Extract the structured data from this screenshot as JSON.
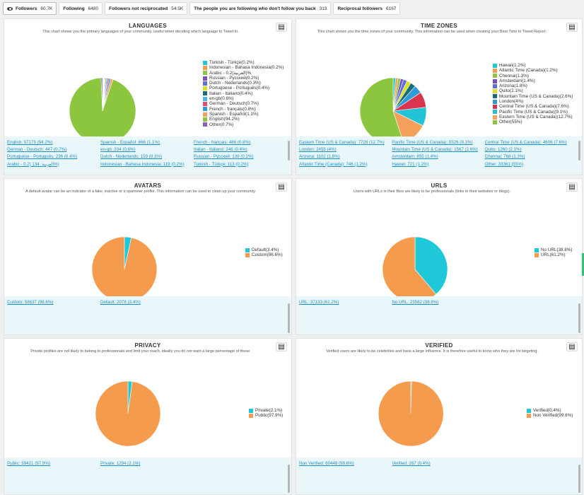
{
  "tabs": [
    {
      "label": "Followers",
      "count": "60.7K",
      "icon": "eye-icon"
    },
    {
      "label": "Following",
      "count": "6480"
    },
    {
      "label": "Followers not reciprocated",
      "count": "54.5K"
    },
    {
      "label": "The people you are following who don't follow you back",
      "count": "313"
    },
    {
      "label": "Reciprocal followers",
      "count": "6167"
    }
  ],
  "export_icon": "export-chart-icon",
  "cards": {
    "languages": {
      "title": "LANGUAGES",
      "desc": "This chart shows you the primary languages of your community, useful when deciding which language to Tweet in.",
      "legend": [
        "Turkish - Türkçe(0.2%)",
        "Indonesian - Bahasa Indonesia(0.2%)",
        "Arabic - 0.2(العربية)%",
        "Russian - Русский(0.2%)",
        "Dutch - Nederlands(0.3%)",
        "Portuguese - Português(0.4%)",
        "Italian - Italiano(0.4%)",
        "en-gb(0.6%)",
        "German - Deutsch(0.7%)",
        "French - français(0.8%)",
        "Spanish - Español(1.1%)",
        "English(94.2%)",
        "Other(0.7%)"
      ],
      "links": [
        "English: 57175 (94.2%)",
        "Spanish - Español: 666 (1.1%)",
        "French - français: 486 (0.8%)",
        "German - Deutsch: 447 (0.7%)",
        "en-gb: 334 (0.6%)",
        "Italian - Italiano: 246 (0.4%)",
        "Portuguese - Português: 236 (0.4%)",
        "Dutch - Nederlands: 159 (0.3%)",
        "Russian - Русский: 139 (0.2%)",
        "Arabic - 0.2) 134 :العربية%)",
        "Indonesian - Bahasa Indonesia: 119 (0.2%)",
        "Turkish - Türkçe: 113 (0.2%)"
      ]
    },
    "timezones": {
      "title": "TIME ZONES",
      "desc": "This chart shows you the time zones of your community. This information can be used when creating your Best Time to Tweet Report.",
      "legend": [
        "Hawaii(1.2%)",
        "Atlantic Time (Canada)(1.2%)",
        "Chennai(1.3%)",
        "Amsterdam(1.4%)",
        "Arizona(1.8%)",
        "Quito(2.1%)",
        "Mountain Time (US & Canada)(2.6%)",
        "London(4%)",
        "Central Time (US & Canada)(7.6%)",
        "Pacific Time (US & Canada)(9.1%)",
        "Eastern Time (US & Canada)(12.7%)",
        "Other(55%)"
      ],
      "links": [
        "Eastern Time (US & Canada): 7728 (12.7%)",
        "Pacific Time (US & Canada): 5526 (9.1%)",
        "Central Time (US & Canada): 4606 (7.6%)",
        "London: 2455 (4%)",
        "Mountain Time (US & Canada): 1567 (2.6%)",
        "Quito: 1260 (2.1%)",
        "Arizona: 1102 (1.8%)",
        "Amsterdam: 855 (1.4%)",
        "Chennai: 768 (1.3%)",
        "Atlantic Time (Canada): 746 (1.2%)",
        "Hawaii: 721 (1.2%)",
        "Other: 33361 (55%)"
      ]
    },
    "avatars": {
      "title": "AVATARS",
      "desc": "A default avatar can be an indicator of a fake, inactive or a spammer profile. This information can be used to clean up your community.",
      "legend": [
        "Default(3.4%)",
        "Custom(96.6%)"
      ],
      "links": [
        "Custom: 58637 (96.6%)",
        "Default: 2078 (3.4%)"
      ]
    },
    "urls": {
      "title": "URLS",
      "desc": "Users with URLs in their Bios are likely to be professionals (links to their websites or blogs).",
      "legend": [
        "No URL(38.8%)",
        "URL(61.2%)"
      ],
      "links": [
        "URL: 37133 (61.2%)",
        "No URL: 23582 (38.8%)"
      ]
    },
    "privacy": {
      "title": "PRIVACY",
      "desc": "Private profiles are not likely to belong to professionals and limit your reach, ideally you do not want a large percentage of these.",
      "legend": [
        "Private(2.1%)",
        "Public(97.9%)"
      ],
      "links": [
        "Public: 59421 (97.9%)",
        "Private: 1294 (2.1%)"
      ]
    },
    "verified": {
      "title": "VERIFIED",
      "desc": "Verified users are likely to be celebrities and have a large influence. It is therefore useful to know who they are for targeting.",
      "legend": [
        "Verified(0.4%)",
        "Non Verified(99.6%)"
      ],
      "links": [
        "Non Verified: 60448 (99.6%)",
        "Verified: 267 (0.4%)"
      ]
    }
  },
  "chart_data": [
    {
      "type": "pie",
      "id": "languages",
      "title": "LANGUAGES",
      "categories": [
        "Turkish - Türkçe",
        "Indonesian - Bahasa Indonesia",
        "Arabic",
        "Russian - Русский",
        "Dutch - Nederlands",
        "Portuguese - Português",
        "Italian - Italiano",
        "en-gb",
        "German - Deutsch",
        "French - français",
        "Spanish - Español",
        "English",
        "Other"
      ],
      "values": [
        0.2,
        0.2,
        0.2,
        0.2,
        0.3,
        0.4,
        0.4,
        0.6,
        0.7,
        0.8,
        1.1,
        94.2,
        0.7
      ],
      "colors": [
        "#1ec8d8",
        "#f59b4d",
        "#8cc63f",
        "#7a4fbf",
        "#5b6ee0",
        "#d9e021",
        "#1a6b7a",
        "#4ab5e8",
        "#e84a6f",
        "#2d9bd8",
        "#f5a05a",
        "#8cc63f",
        "#8e5bb5"
      ]
    },
    {
      "type": "pie",
      "id": "timezones",
      "title": "TIME ZONES",
      "categories": [
        "Hawaii",
        "Atlantic Time (Canada)",
        "Chennai",
        "Amsterdam",
        "Arizona",
        "Quito",
        "Mountain Time (US & Canada)",
        "London",
        "Central Time (US & Canada)",
        "Pacific Time (US & Canada)",
        "Eastern Time (US & Canada)",
        "Other"
      ],
      "values": [
        1.2,
        1.2,
        1.3,
        1.4,
        1.8,
        2.1,
        2.6,
        4,
        7.6,
        9.1,
        12.7,
        55
      ],
      "colors": [
        "#1ec8d8",
        "#f59b4d",
        "#8cc63f",
        "#7a4fbf",
        "#5b6ee0",
        "#d9e021",
        "#1a6b7a",
        "#2d9bd8",
        "#d9354f",
        "#22c3d6",
        "#f5a05a",
        "#8cc63f"
      ]
    },
    {
      "type": "pie",
      "id": "avatars",
      "title": "AVATARS",
      "categories": [
        "Default",
        "Custom"
      ],
      "values": [
        3.4,
        96.6
      ],
      "colors": [
        "#1ec8d8",
        "#f59b4d"
      ]
    },
    {
      "type": "pie",
      "id": "urls",
      "title": "URLS",
      "categories": [
        "No URL",
        "URL"
      ],
      "values": [
        38.8,
        61.2
      ],
      "colors": [
        "#1ec8d8",
        "#f59b4d"
      ]
    },
    {
      "type": "pie",
      "id": "privacy",
      "title": "PRIVACY",
      "categories": [
        "Private",
        "Public"
      ],
      "values": [
        2.1,
        97.9
      ],
      "colors": [
        "#1ec8d8",
        "#f59b4d"
      ]
    },
    {
      "type": "pie",
      "id": "verified",
      "title": "VERIFIED",
      "categories": [
        "Verified",
        "Non Verified"
      ],
      "values": [
        0.4,
        99.6
      ],
      "colors": [
        "#1ec8d8",
        "#f59b4d"
      ]
    }
  ]
}
